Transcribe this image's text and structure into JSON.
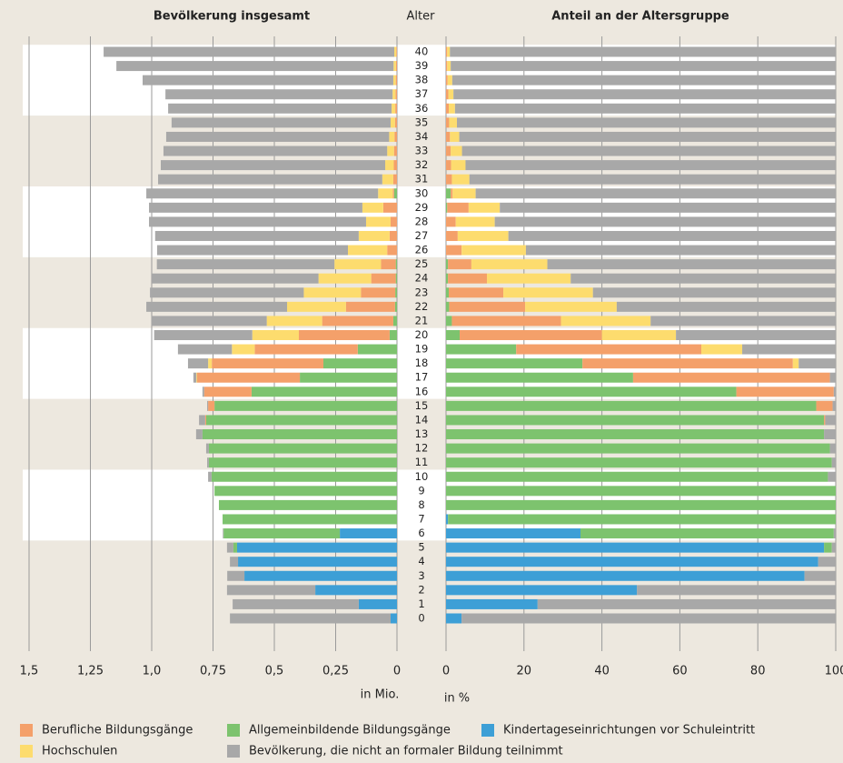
{
  "chart_data": [
    {
      "type": "bar",
      "orientation": "horizontal",
      "title": "Bevölkerung insgesamt",
      "ylabel": "Alter",
      "xlabel": "in Mio.",
      "categories": [
        "0",
        "1",
        "2",
        "3",
        "4",
        "5",
        "6",
        "7",
        "8",
        "9",
        "10",
        "11",
        "12",
        "13",
        "14",
        "15",
        "16",
        "17",
        "18",
        "19",
        "20",
        "21",
        "22",
        "23",
        "24",
        "25",
        "26",
        "27",
        "28",
        "29",
        "30",
        "31",
        "32",
        "33",
        "34",
        "35",
        "36",
        "37",
        "38",
        "39",
        "40"
      ],
      "stacked": true,
      "x_inverted": true,
      "xlim": [
        0,
        1.5
      ],
      "xticks": [
        {
          "value": 1.5,
          "label": "1,5"
        },
        {
          "value": 1.25,
          "label": "1,25"
        },
        {
          "value": 1.0,
          "label": "1,0"
        },
        {
          "value": 0.75,
          "label": "0,75"
        },
        {
          "value": 0.5,
          "label": "0,5"
        },
        {
          "value": 0.25,
          "label": "0,25"
        },
        0
      ],
      "grid": true,
      "series": [
        {
          "name": "Kindertageseinrichtungen vor Schuleintritt",
          "color": "#3d9fd6",
          "values": [
            0.026,
            0.156,
            0.333,
            0.622,
            0.648,
            0.652,
            0.233,
            0,
            0,
            0,
            0,
            0,
            0,
            0,
            0,
            0,
            0,
            0,
            0,
            0,
            0,
            0,
            0,
            0,
            0,
            0,
            0,
            0,
            0,
            0,
            0,
            0,
            0,
            0,
            0,
            0,
            0,
            0,
            0,
            0,
            0
          ]
        },
        {
          "name": "Allgemeinbildende Bildungsgänge",
          "color": "#7dc36e",
          "values": [
            0,
            0,
            0,
            0,
            0,
            0.015,
            0.474,
            0.711,
            0.726,
            0.744,
            0.756,
            0.767,
            0.767,
            0.793,
            0.778,
            0.744,
            0.593,
            0.396,
            0.3,
            0.16,
            0.03,
            0.015,
            0.008,
            0.007,
            0.005,
            0.005,
            0,
            0,
            0,
            0,
            0.012,
            0,
            0,
            0,
            0,
            0,
            0,
            0,
            0,
            0,
            0
          ]
        },
        {
          "name": "Berufliche Bildungsgänge",
          "color": "#f4a06a",
          "values": [
            0,
            0,
            0,
            0,
            0,
            0,
            0,
            0,
            0,
            0,
            0,
            0,
            0,
            0,
            0.004,
            0.026,
            0.193,
            0.419,
            0.455,
            0.42,
            0.37,
            0.29,
            0.2,
            0.14,
            0.1,
            0.06,
            0.04,
            0.03,
            0.026,
            0.056,
            0.005,
            0.015,
            0.013,
            0.012,
            0.01,
            0.008,
            0.007,
            0.006,
            0.005,
            0.004,
            0.003
          ]
        },
        {
          "name": "Hochschulen",
          "color": "#fddc6e",
          "values": [
            0,
            0,
            0,
            0,
            0,
            0,
            0,
            0,
            0,
            0,
            0,
            0,
            0,
            0,
            0,
            0,
            0,
            0.003,
            0.015,
            0.093,
            0.19,
            0.226,
            0.24,
            0.233,
            0.215,
            0.19,
            0.16,
            0.126,
            0.1,
            0.085,
            0.06,
            0.045,
            0.035,
            0.028,
            0.022,
            0.018,
            0.015,
            0.012,
            0.01,
            0.01,
            0.008
          ]
        },
        {
          "name": "Bevölkerung, die nicht an formaler Bildung teilnimmt",
          "color": "#a8a8a8",
          "values": [
            0.655,
            0.514,
            0.36,
            0.07,
            0.033,
            0.026,
            0.003,
            0,
            0,
            0,
            0.014,
            0.007,
            0.011,
            0.026,
            0.025,
            0.004,
            0.007,
            0.012,
            0.082,
            0.22,
            0.4,
            0.47,
            0.574,
            0.627,
            0.68,
            0.724,
            0.778,
            0.83,
            0.885,
            0.87,
            0.945,
            0.914,
            0.915,
            0.912,
            0.909,
            0.893,
            0.911,
            0.926,
            1.022,
            1.13,
            1.185
          ]
        }
      ]
    },
    {
      "type": "bar",
      "orientation": "horizontal",
      "title": "Anteil an der Altersgruppe",
      "xlabel": "in %",
      "stacked": true,
      "xlim": [
        0,
        100
      ],
      "xticks": [
        0,
        20,
        40,
        60,
        80,
        100
      ],
      "grid": true,
      "series": [
        {
          "values": [
            4,
            23.5,
            49,
            92,
            95.5,
            97,
            34.5,
            0.5,
            0,
            0,
            0,
            0,
            0,
            0,
            0,
            0,
            0,
            0,
            0,
            0,
            0,
            0,
            0,
            0,
            0,
            0,
            0,
            0,
            0,
            0,
            0,
            0,
            0,
            0,
            0,
            0,
            0,
            0,
            0,
            0,
            0
          ]
        },
        {
          "values": [
            0,
            0,
            0,
            0,
            0,
            2,
            65,
            99.5,
            100,
            100,
            98,
            99,
            98.5,
            97,
            97,
            95,
            74.5,
            48,
            35,
            18,
            3.5,
            1.5,
            0.8,
            0.7,
            0.5,
            0.5,
            0,
            0,
            0,
            0.3,
            1.2,
            0,
            0,
            0,
            0,
            0,
            0,
            0,
            0,
            0,
            0
          ]
        },
        {
          "values": [
            0,
            0,
            0,
            0,
            0,
            0,
            0,
            0,
            0,
            0,
            0,
            0,
            0,
            0,
            0.3,
            4.2,
            25,
            50.5,
            54,
            47.5,
            36.5,
            28,
            19.5,
            14,
            10,
            6,
            4,
            3,
            2.5,
            5.5,
            0.5,
            1.5,
            1.3,
            1.2,
            1,
            0.8,
            0.7,
            0.6,
            0.4,
            0.3,
            0.3
          ]
        },
        {
          "values": [
            0,
            0,
            0,
            0,
            0,
            0,
            0,
            0,
            0,
            0,
            0,
            0,
            0,
            0,
            0,
            0,
            0,
            0,
            1.5,
            10.5,
            19,
            23,
            23.5,
            23,
            21.5,
            19.5,
            16.5,
            13,
            10,
            8,
            5.9,
            4.5,
            3.7,
            2.9,
            2.4,
            2,
            1.6,
            1.3,
            1.2,
            0.9,
            0.7
          ]
        },
        {
          "values": [
            96,
            76.5,
            51,
            8,
            4.5,
            1,
            0.5,
            0,
            0,
            0,
            2,
            1,
            1.5,
            3,
            2.7,
            0.8,
            0.5,
            1.5,
            9.5,
            24,
            41,
            47.5,
            56.2,
            62.3,
            68,
            74,
            79.5,
            84,
            87.5,
            86.2,
            92.4,
            94,
            95,
            95.9,
            96.6,
            97.2,
            97.7,
            98.1,
            98.4,
            98.8,
            99
          ]
        }
      ]
    }
  ]
}
